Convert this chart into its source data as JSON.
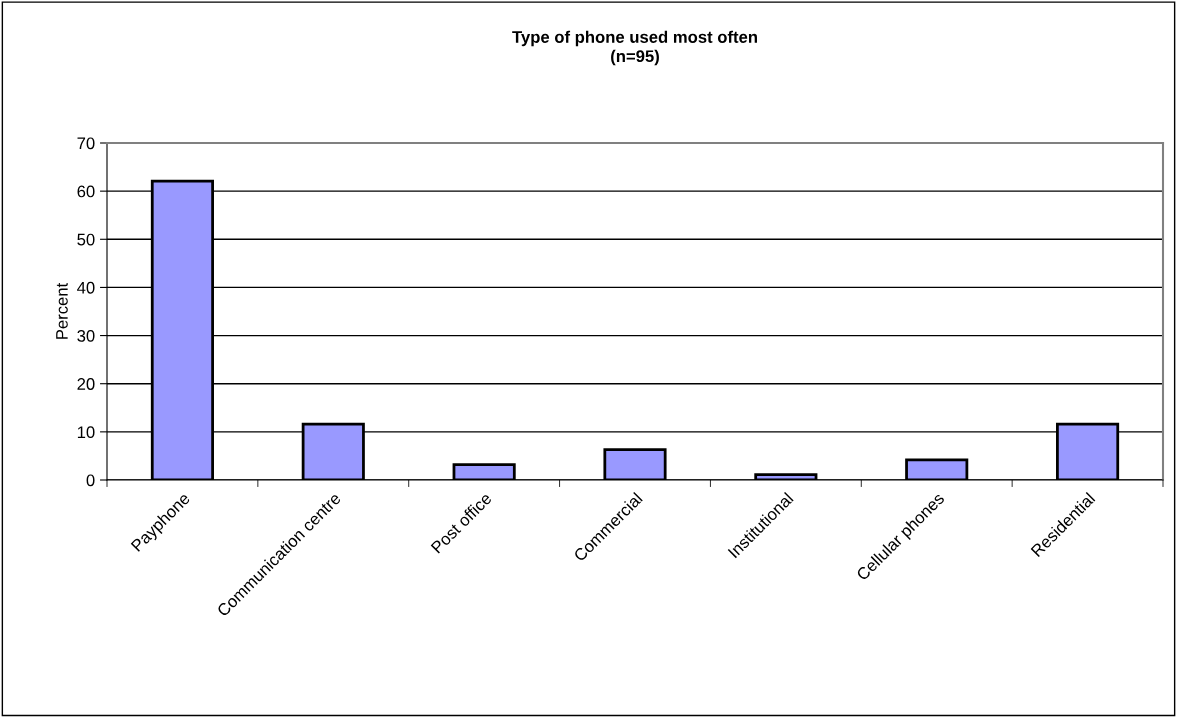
{
  "chart_data": {
    "type": "bar",
    "title": "Type of phone used most often\n(n=95)",
    "ylabel": "Percent",
    "categories": [
      "Payphone",
      "Communication centre",
      "Post office",
      "Commercial",
      "Institutional",
      "Cellular phones",
      "Residential"
    ],
    "values": [
      62.1,
      11.6,
      3.2,
      6.3,
      1.1,
      4.2,
      11.6
    ],
    "color": "#9999ff",
    "ylim": [
      0,
      70
    ],
    "yticks": [
      0,
      10,
      20,
      30,
      40,
      50,
      60,
      70
    ],
    "grid": "y",
    "legend": false
  }
}
